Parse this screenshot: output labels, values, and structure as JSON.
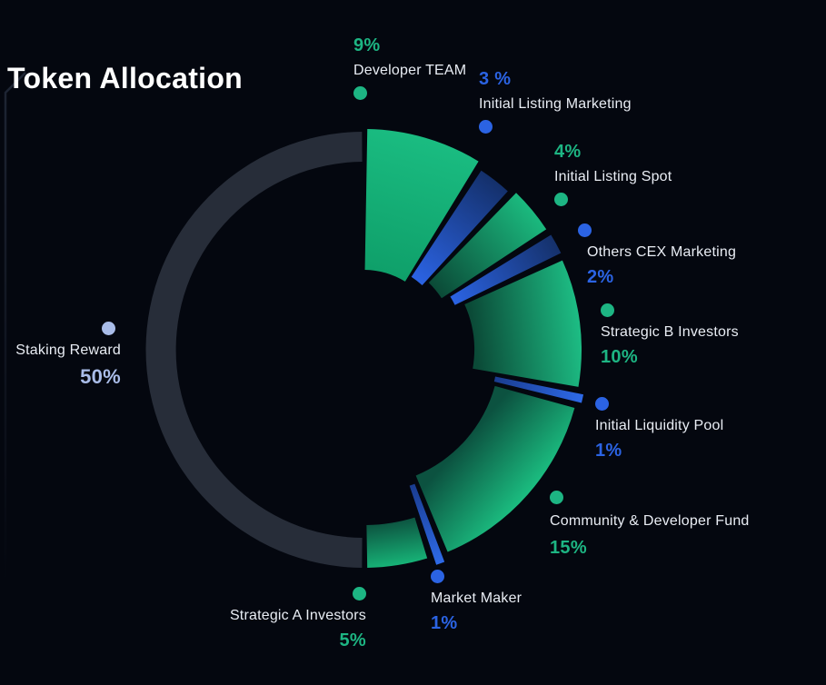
{
  "page": {
    "title": "Token Allocation",
    "background": "#04070f"
  },
  "chart_data": {
    "type": "pie",
    "donut": true,
    "title": "Token Allocation",
    "start_angle_deg": 0,
    "direction": "clockwise",
    "units": "%",
    "legend_position": "around",
    "segments": [
      {
        "label": "Developer TEAM",
        "value": 9,
        "pct_label": "9%",
        "color_type": "green"
      },
      {
        "label": "Initial Listing Marketing",
        "value": 3,
        "pct_label": "3 %",
        "color_type": "blue"
      },
      {
        "label": "Initial Listing Spot",
        "value": 4,
        "pct_label": "4%",
        "color_type": "green"
      },
      {
        "label": "Others CEX Marketing",
        "value": 2,
        "pct_label": "2%",
        "color_type": "blue"
      },
      {
        "label": "Strategic B Investors",
        "value": 10,
        "pct_label": "10%",
        "color_type": "green"
      },
      {
        "label": "Initial Liquidity Pool",
        "value": 1,
        "pct_label": "1%",
        "color_type": "blue"
      },
      {
        "label": "Community & Developer Fund",
        "value": 15,
        "pct_label": "15%",
        "color_type": "green"
      },
      {
        "label": "Market Maker",
        "value": 1,
        "pct_label": "1%",
        "color_type": "blue"
      },
      {
        "label": "Strategic A Investors",
        "value": 5,
        "pct_label": "5%",
        "color_type": "green"
      },
      {
        "label": "Staking Reward",
        "value": 50,
        "pct_label": "50%",
        "color_type": "staking"
      }
    ],
    "colors": {
      "green": "#1db583",
      "blue": "#2b63e3",
      "staking": "#a9bce8",
      "gray_ring": "#272d39",
      "green_dark": "#0b5340",
      "blue_dark": "#142f68",
      "text": "#e9edf4",
      "title": "#ffffff"
    }
  }
}
